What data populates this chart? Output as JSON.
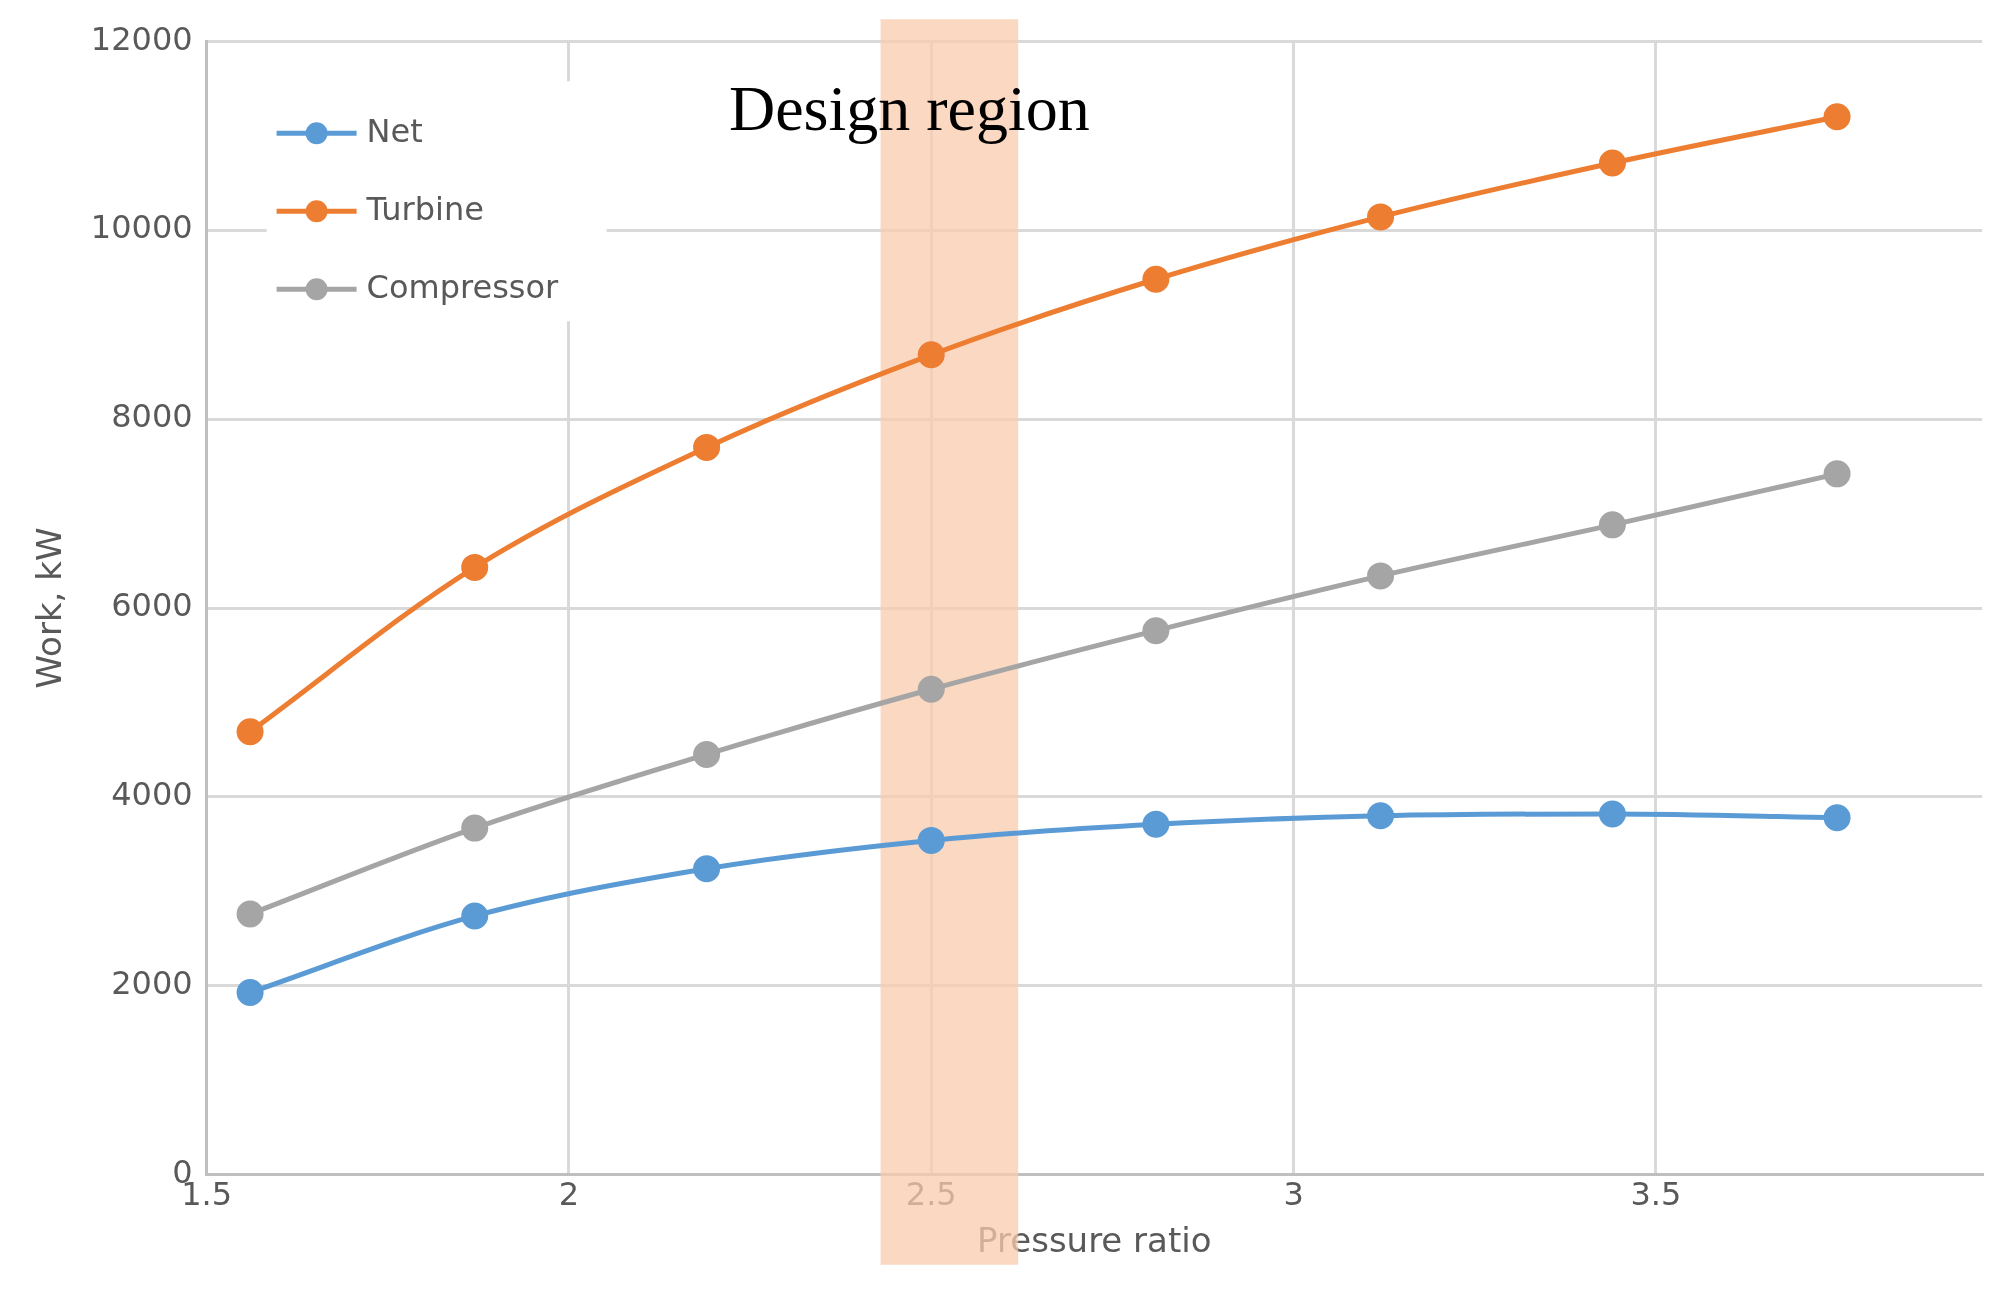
{
  "chart_data": {
    "type": "line",
    "xlabel": "Pressure ratio",
    "ylabel": "Work, kW",
    "x": [
      1.56,
      1.87,
      2.19,
      2.5,
      2.81,
      3.12,
      3.44,
      3.75
    ],
    "series": [
      {
        "name": "Net",
        "color": "#5b9bd5",
        "values": [
          1930,
          2740,
          3240,
          3540,
          3710,
          3800,
          3820,
          3780
        ]
      },
      {
        "name": "Turbine",
        "color": "#ed7d31",
        "values": [
          4690,
          6430,
          7700,
          8680,
          9480,
          10140,
          10710,
          11200
        ]
      },
      {
        "name": "Compressor",
        "color": "#a5a5a5",
        "values": [
          2760,
          3670,
          4450,
          5140,
          5760,
          6340,
          6880,
          7420
        ]
      }
    ],
    "xlim": [
      1.5,
      3.95
    ],
    "xticks": [
      1.5,
      2,
      2.5,
      3,
      3.5
    ],
    "ylim": [
      0,
      12000
    ],
    "yticks": [
      0,
      2000,
      4000,
      6000,
      8000,
      10000,
      12000
    ],
    "bands": [
      {
        "axis": "x",
        "from": 2.43,
        "to": 2.62,
        "label": "Design region",
        "color": "#f8cbad"
      }
    ],
    "grid": true,
    "legend": "top left",
    "marker": "circle",
    "line_style": "solid"
  }
}
